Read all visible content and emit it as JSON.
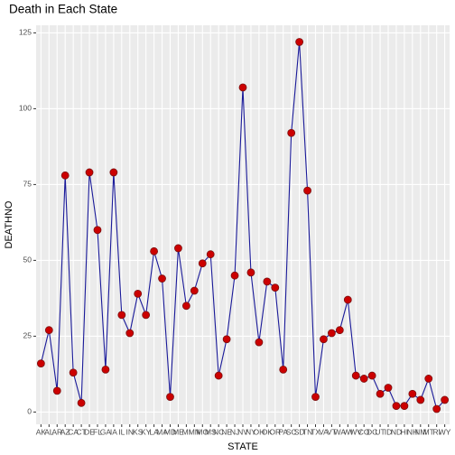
{
  "chart_data": {
    "type": "line",
    "title": "Death in Each State",
    "x_label": "STATE",
    "y_label": "DEATHNO",
    "categories": [
      "AK",
      "AL",
      "AR",
      "AZ",
      "CA",
      "CT",
      "DE",
      "FL",
      "GA",
      "IA",
      "IL",
      "IN",
      "KS",
      "KY",
      "LA",
      "MA",
      "MD",
      "ME",
      "MI",
      "MN",
      "MO",
      "MS",
      "NC",
      "NE",
      "NJ",
      "NV",
      "NY",
      "OH",
      "OK",
      "OR",
      "PA",
      "SC",
      "SD",
      "TN",
      "TX",
      "VA",
      "VT",
      "WA",
      "WI",
      "WV",
      "CO",
      "DC",
      "UT",
      "ID",
      "ND",
      "HI",
      "NH",
      "NM",
      "MT",
      "RI",
      "WY"
    ],
    "series": [
      {
        "name": "DEATHNO",
        "color": "#1a1a99",
        "point_color": "#cc0000",
        "values": [
          16,
          27,
          7,
          78,
          13,
          3,
          79,
          60,
          14,
          79,
          32,
          26,
          39,
          32,
          53,
          44,
          5,
          54,
          35,
          40,
          49,
          52,
          12,
          24,
          45,
          107,
          46,
          23,
          43,
          41,
          14,
          92,
          122,
          73,
          5,
          24,
          26,
          27,
          37,
          12,
          11,
          12,
          6,
          8,
          2,
          2,
          6,
          4,
          11,
          1,
          4
        ]
      }
    ],
    "ylim": [
      -4.05,
      127.5
    ],
    "yticks": [
      0,
      25,
      50,
      75,
      100,
      125
    ],
    "grid": true
  }
}
